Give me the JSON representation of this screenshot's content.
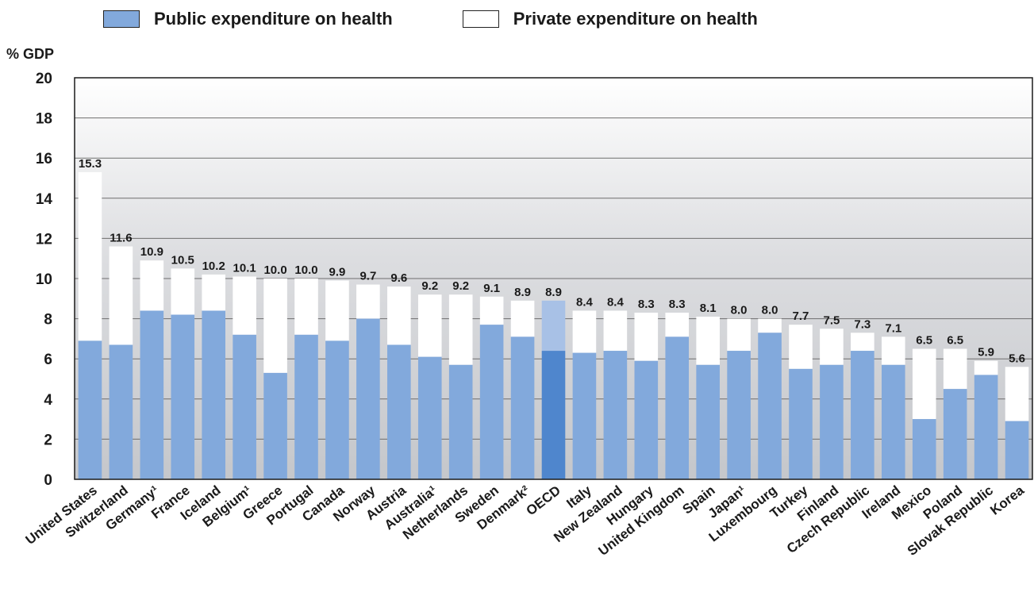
{
  "legend": {
    "public_label": "Public expenditure on health",
    "private_label": "Private expenditure on health",
    "public_color": "#82a9dc",
    "private_color": "#ffffff"
  },
  "chart_data": {
    "type": "bar",
    "stacked": true,
    "ylabel": "% GDP",
    "ylim": [
      0,
      20
    ],
    "yticks": [
      0,
      2,
      4,
      6,
      8,
      10,
      12,
      14,
      16,
      18,
      20
    ],
    "grid": true,
    "legend_position": "top",
    "categories": [
      "United States",
      "Switzerland",
      "Germany¹",
      "France",
      "Iceland",
      "Belgium¹",
      "Greece",
      "Portugal",
      "Canada",
      "Norway",
      "Austria",
      "Australia¹",
      "Netherlands",
      "Sweden",
      "Denmark²",
      "OECD",
      "Italy",
      "New Zealand",
      "Hungary",
      "United Kingdom",
      "Spain",
      "Japan¹",
      "Luxembourg",
      "Turkey",
      "Finland",
      "Czech Republic",
      "Ireland",
      "Mexico",
      "Poland",
      "Slovak Republic",
      "Korea"
    ],
    "totals_labels": [
      "15.3",
      "11.6",
      "10.9",
      "10.5",
      "10.2",
      "10.1",
      "10.0",
      "10.0",
      "9.9",
      "9.7",
      "9.6",
      "9.2",
      "9.2",
      "9.1",
      "8.9",
      "8.9",
      "8.4",
      "8.4",
      "8.3",
      "8.3",
      "8.1",
      "8.0",
      "8.0",
      "7.7",
      "7.5",
      "7.3",
      "7.1",
      "6.5",
      "6.5",
      "5.9",
      "5.6"
    ],
    "highlight_category": "OECD",
    "highlight_colors": {
      "public": "#4f86cd",
      "private": "#a8c1e6"
    },
    "series": [
      {
        "name": "Public expenditure on health",
        "values": [
          6.9,
          6.7,
          8.4,
          8.2,
          8.4,
          7.2,
          5.3,
          7.2,
          6.9,
          8.0,
          6.7,
          6.1,
          5.7,
          7.7,
          7.1,
          6.4,
          6.3,
          6.4,
          5.9,
          7.1,
          5.7,
          6.4,
          7.3,
          5.5,
          5.7,
          6.4,
          5.7,
          3.0,
          4.5,
          5.2,
          2.9
        ]
      },
      {
        "name": "Private expenditure on health",
        "values": [
          8.4,
          4.9,
          2.5,
          2.3,
          1.8,
          2.9,
          4.7,
          2.8,
          3.0,
          1.7,
          2.9,
          3.1,
          3.5,
          1.4,
          1.8,
          2.5,
          2.1,
          2.0,
          2.4,
          1.2,
          2.4,
          1.6,
          0.7,
          2.2,
          1.8,
          0.9,
          1.4,
          3.5,
          2.0,
          0.7,
          2.7
        ]
      }
    ]
  }
}
